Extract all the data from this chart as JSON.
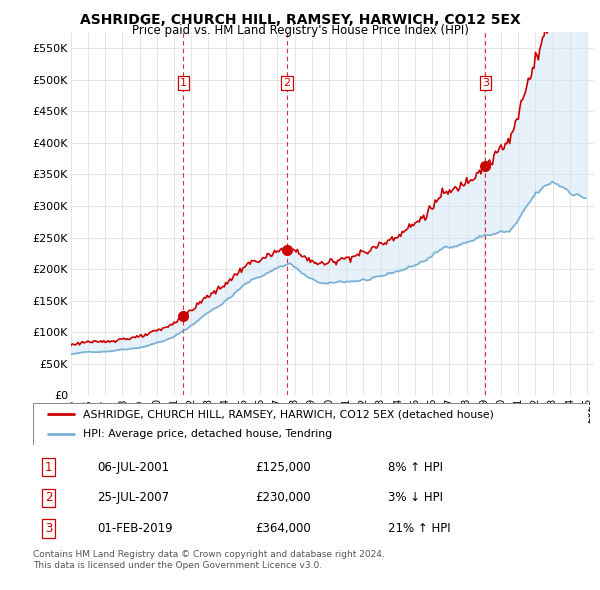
{
  "title": "ASHRIDGE, CHURCH HILL, RAMSEY, HARWICH, CO12 5EX",
  "subtitle": "Price paid vs. HM Land Registry's House Price Index (HPI)",
  "ylim": [
    0,
    575000
  ],
  "yticks": [
    0,
    50000,
    100000,
    150000,
    200000,
    250000,
    300000,
    350000,
    400000,
    450000,
    500000,
    550000
  ],
  "ytick_labels": [
    "£0",
    "£50K",
    "£100K",
    "£150K",
    "£200K",
    "£250K",
    "£300K",
    "£350K",
    "£400K",
    "£450K",
    "£500K",
    "£550K"
  ],
  "background_color": "#ffffff",
  "grid_color": "#e0e0e0",
  "sale_dates_num": [
    2001.54,
    2007.56,
    2019.08
  ],
  "sale_prices": [
    125000,
    230000,
    364000
  ],
  "sale_labels": [
    "1",
    "2",
    "3"
  ],
  "sale_pct": [
    "8% ↑ HPI",
    "3% ↓ HPI",
    "21% ↑ HPI"
  ],
  "sale_price_strs": [
    "£125,000",
    "£230,000",
    "£364,000"
  ],
  "sale_date_strs": [
    "06-JUL-2001",
    "25-JUL-2007",
    "01-FEB-2019"
  ],
  "legend_line1": "ASHRIDGE, CHURCH HILL, RAMSEY, HARWICH, CO12 5EX (detached house)",
  "legend_line2": "HPI: Average price, detached house, Tendring",
  "footer1": "Contains HM Land Registry data © Crown copyright and database right 2024.",
  "footer2": "This data is licensed under the Open Government Licence v3.0.",
  "red_color": "#cc0000",
  "blue_color": "#7aafd4",
  "blue_fill": "#d0e4f5",
  "dashed_color": "#cc0000",
  "marker_color": "#cc0000"
}
